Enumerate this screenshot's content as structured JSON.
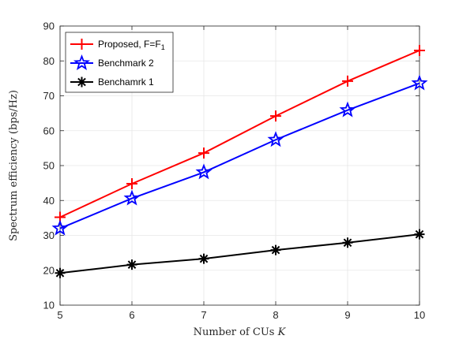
{
  "chart_data": {
    "type": "line",
    "x": [
      5,
      6,
      7,
      8,
      9,
      10
    ],
    "xlabel": "Number of CUs K",
    "ylabel": "Spectrum efficiency (bps/Hz)",
    "xlim": [
      5,
      10
    ],
    "ylim": [
      10,
      90
    ],
    "xticks": [
      5,
      6,
      7,
      8,
      9,
      10
    ],
    "yticks": [
      10,
      20,
      30,
      40,
      50,
      60,
      70,
      80,
      90
    ],
    "grid": true,
    "legend_position": "top-left",
    "series": [
      {
        "name": "Proposed, F=F1",
        "values": [
          35.2,
          44.8,
          53.6,
          64.2,
          74.2,
          83.0
        ],
        "color": "#ff0000",
        "marker": "plus"
      },
      {
        "name": "Benchmark 2",
        "values": [
          32.0,
          40.6,
          48.1,
          57.4,
          65.9,
          73.6
        ],
        "color": "#0000ff",
        "marker": "star"
      },
      {
        "name": "Benchamrk 1",
        "values": [
          19.2,
          21.6,
          23.3,
          25.8,
          27.9,
          30.3
        ],
        "color": "#000000",
        "marker": "asterisk"
      }
    ]
  }
}
